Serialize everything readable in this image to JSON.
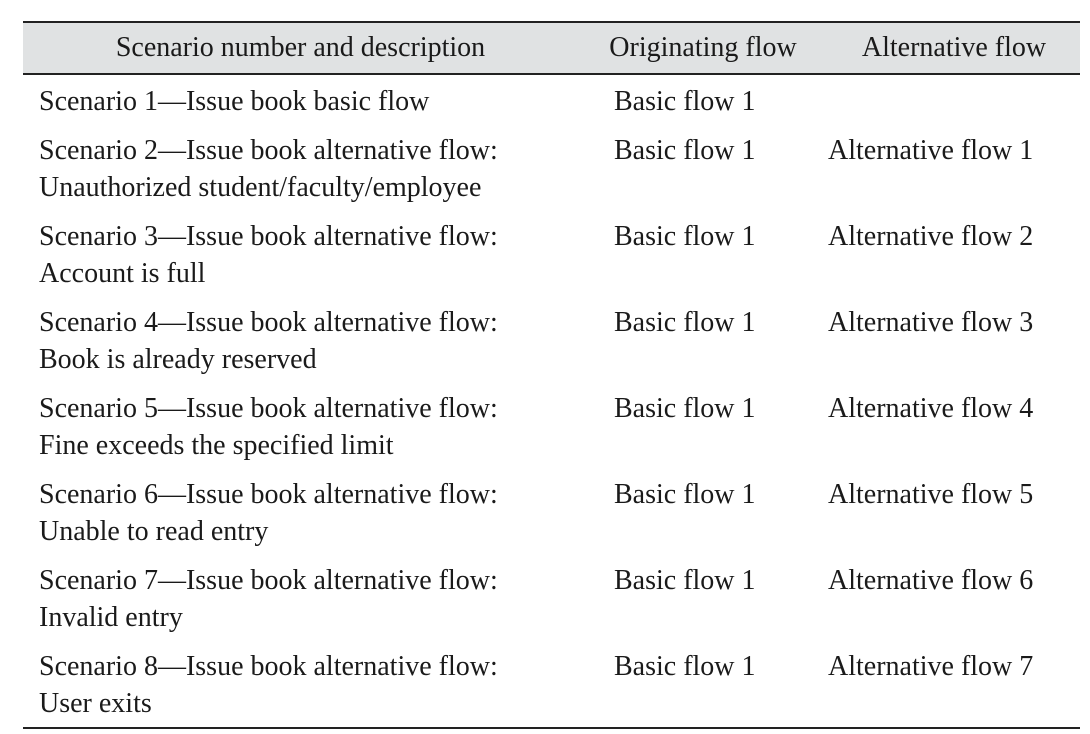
{
  "table": {
    "headers": [
      "Scenario number and description",
      "Originating flow",
      "Alternative flow"
    ],
    "rows": [
      {
        "desc_line1": "Scenario 1—Issue book basic flow",
        "desc_line2": "",
        "originating": "Basic flow 1",
        "alternative": ""
      },
      {
        "desc_line1": "Scenario 2—Issue book alternative flow:",
        "desc_line2": "Unauthorized student/faculty/employee",
        "originating": "Basic flow 1",
        "alternative": "Alternative flow 1"
      },
      {
        "desc_line1": "Scenario 3—Issue book alternative flow:",
        "desc_line2": "Account is full",
        "originating": "Basic flow 1",
        "alternative": "Alternative flow 2"
      },
      {
        "desc_line1": "Scenario 4—Issue book alternative flow:",
        "desc_line2": "Book is already reserved",
        "originating": "Basic flow 1",
        "alternative": "Alternative flow 3"
      },
      {
        "desc_line1": "Scenario 5—Issue book alternative flow:",
        "desc_line2": "Fine exceeds the specified limit",
        "originating": "Basic flow 1",
        "alternative": "Alternative flow 4"
      },
      {
        "desc_line1": "Scenario 6—Issue book alternative flow:",
        "desc_line2": "Unable to read entry",
        "originating": "Basic flow 1",
        "alternative": "Alternative flow 5"
      },
      {
        "desc_line1": "Scenario 7—Issue book alternative flow:",
        "desc_line2": "Invalid entry",
        "originating": "Basic flow 1",
        "alternative": "Alternative flow 6"
      },
      {
        "desc_line1": "Scenario 8—Issue book alternative flow:",
        "desc_line2": "User exits",
        "originating": "Basic flow 1",
        "alternative": "Alternative flow 7"
      }
    ]
  }
}
